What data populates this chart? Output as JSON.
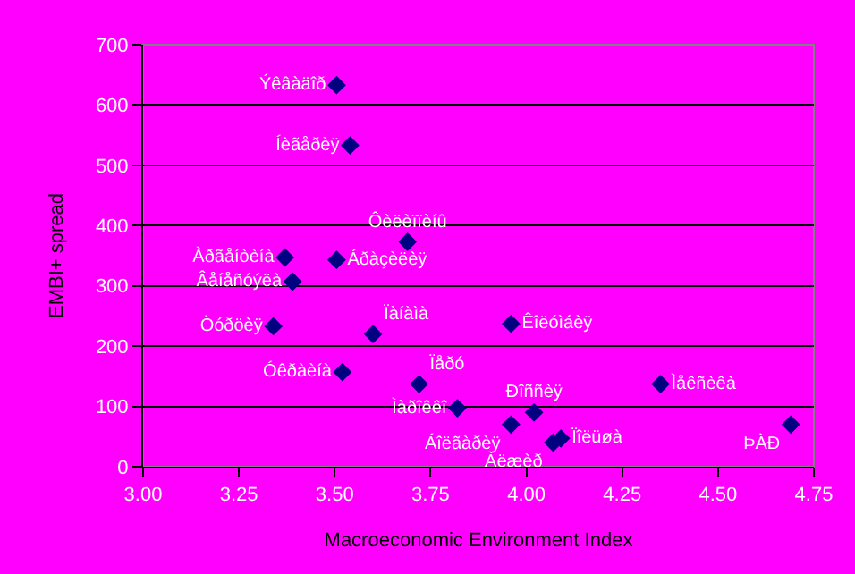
{
  "chart_data": {
    "type": "scatter",
    "xlabel": "Macroeconomic Environment Index",
    "ylabel": "EMBI+ spread",
    "x": [
      3.505,
      3.54,
      3.69,
      3.37,
      3.39,
      3.505,
      3.34,
      3.6,
      3.96,
      3.52,
      3.72,
      3.82,
      4.02,
      4.35,
      3.96,
      4.07,
      4.09,
      4.69
    ],
    "series": [
      {
        "color": "#000080",
        "values": [
          633,
          533,
          373,
          347,
          307,
          343,
          233,
          220,
          237,
          157,
          137,
          97,
          90,
          137,
          70,
          40,
          47,
          70
        ],
        "value_labels": [
          "Ýêâàäîð",
          "Íèãåðèÿ",
          "Ôèëèïïèíû",
          "Àðãåíòèíà",
          "Âåíåñóýëà",
          "Áðàçèëèÿ",
          "Òóðöèÿ",
          "Ïàíàìà",
          "Êîëóìáèÿ",
          "Óêðàèíà",
          "Ïåðó",
          "Ìàðîêêî",
          "Ðîññèÿ",
          "Ìåêñèêà",
          "Áîëãàðèÿ",
          "Àëæèð",
          "Ïîëüøà",
          "ÞÀÐ"
        ]
      }
    ],
    "xlim": [
      3.0,
      4.75
    ],
    "xticks": [
      {
        "value": 3.0,
        "label": "3.00"
      },
      3.25,
      {
        "value": 3.5,
        "label": "3.50"
      },
      3.75,
      {
        "value": 4.0,
        "label": "4.00"
      },
      4.25,
      {
        "value": 4.5,
        "label": "4.50"
      },
      4.75
    ],
    "ylim": [
      0,
      700
    ],
    "yticks": [
      0,
      100,
      200,
      300,
      400,
      500,
      600,
      700
    ],
    "grid": "y",
    "marker": "diamond"
  }
}
